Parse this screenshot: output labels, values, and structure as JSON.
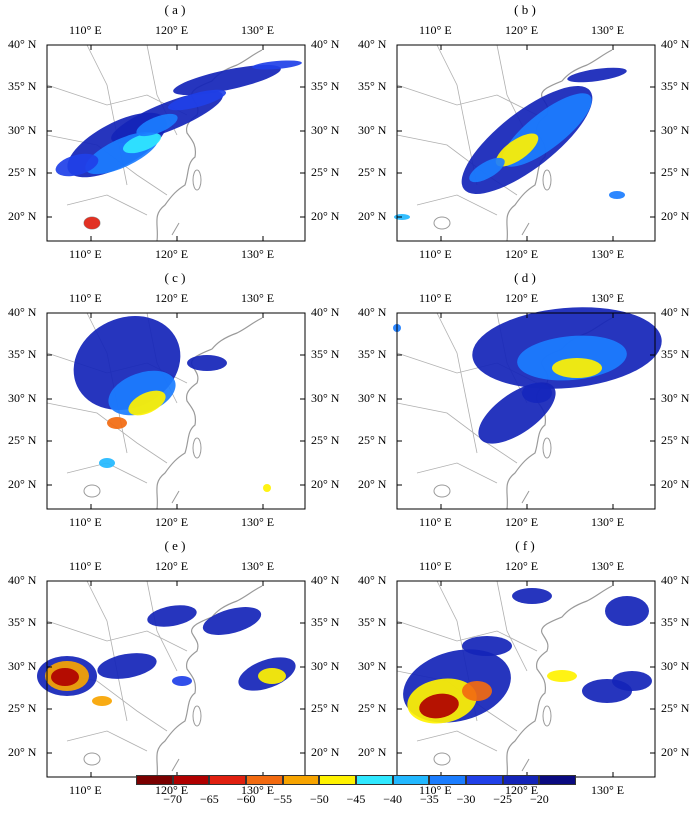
{
  "panels": [
    {
      "id": "a",
      "label": "( a )"
    },
    {
      "id": "b",
      "label": "( b )"
    },
    {
      "id": "c",
      "label": "( c )"
    },
    {
      "id": "d",
      "label": "( d )"
    },
    {
      "id": "e",
      "label": "( e )"
    },
    {
      "id": "f",
      "label": "( f )"
    }
  ],
  "axes": {
    "lon_ticks": [
      "110° E",
      "120° E",
      "130° E"
    ],
    "lat_ticks": [
      "40° N",
      "35° N",
      "30° N",
      "25° N",
      "20° N"
    ]
  },
  "colorbar": {
    "labels": [
      "−70",
      "−65",
      "−60",
      "−55",
      "−50",
      "−45",
      "−40",
      "−35",
      "−30",
      "−25",
      "−20"
    ],
    "colors": [
      "#7a0000",
      "#b00000",
      "#e02010",
      "#f26a10",
      "#f7a400",
      "#fff200",
      "#30e8ff",
      "#22b8ff",
      "#1b7dff",
      "#2040e8",
      "#1424b8",
      "#0a0a80"
    ]
  }
}
